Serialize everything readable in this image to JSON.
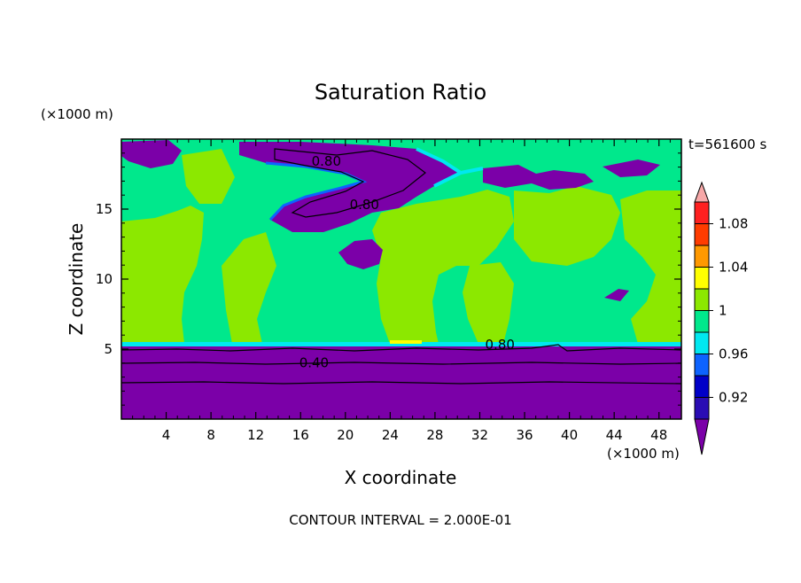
{
  "chart_data": {
    "type": "heatmap",
    "title": "Saturation Ratio",
    "xlabel": "X coordinate",
    "ylabel": "Z coordinate",
    "x_unit": "(×1000 m)",
    "y_unit": "(×1000 m)",
    "time_label": "t=561600 s",
    "footer": "CONTOUR INTERVAL = 2.000E-01",
    "xlim": [
      0,
      50
    ],
    "ylim": [
      0,
      20
    ],
    "x_ticks": [
      4,
      8,
      12,
      16,
      20,
      24,
      28,
      32,
      36,
      40,
      44,
      48
    ],
    "x_tick_labels": [
      "4",
      "8",
      "12",
      "16",
      "20",
      "24",
      "28",
      "32",
      "36",
      "40",
      "44",
      "48"
    ],
    "y_ticks": [
      5,
      10,
      15
    ],
    "y_tick_labels": [
      "5",
      "10",
      "15"
    ],
    "contour_labels": [
      {
        "text": "0.80",
        "x": 18.3,
        "y": 18.1
      },
      {
        "text": "0.80",
        "x": 21.7,
        "y": 15.0
      },
      {
        "text": "0.80",
        "x": 33.8,
        "y": 5.0
      },
      {
        "text": "0.40",
        "x": 17.2,
        "y": 3.7
      }
    ],
    "colorbar": {
      "levels": [
        0.92,
        0.94,
        0.96,
        0.98,
        1.0,
        1.02,
        1.04,
        1.06,
        1.08
      ],
      "tick_labels": [
        "0.92",
        "0.96",
        "1",
        "1.04",
        "1.08"
      ],
      "tick_values": [
        0.92,
        0.96,
        1.0,
        1.04,
        1.08
      ],
      "colors": [
        "#7b00a8",
        "#2a0cb4",
        "#0000c8",
        "#0d63ff",
        "#00e8f0",
        "#00e88c",
        "#8ce800",
        "#ffff00",
        "#ff9900",
        "#ff3c00",
        "#ff2020",
        "#f7a8a8"
      ]
    },
    "regions": [
      {
        "name": "lower-dry-layer",
        "value": "<0.92",
        "z_range": [
          0,
          5.4
        ]
      },
      {
        "name": "mid-layer",
        "value": "0.98-1.02",
        "z_range": [
          5.4,
          19.5
        ]
      },
      {
        "name": "upper-dry-patch",
        "value": "<0.92",
        "z_range": [
          14.5,
          19.5
        ]
      }
    ]
  }
}
